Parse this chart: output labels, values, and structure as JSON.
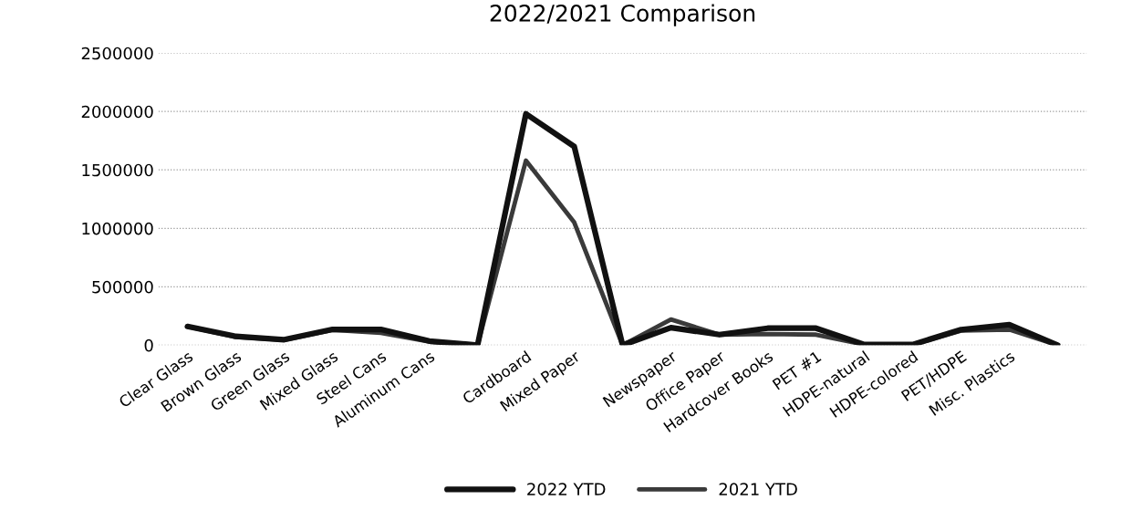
{
  "chart_data": {
    "type": "line",
    "title": "2022/2021 Comparison",
    "categories": [
      "Clear Glass",
      "Brown Glass",
      "Green Glass",
      "Mixed Glass",
      "Steel Cans",
      "Aluminum Cans",
      null,
      "Cardboard",
      "Mixed Paper",
      null,
      "Newspaper",
      "Office Paper",
      "Hardcover Books",
      "PET #1",
      "HDPE-natural",
      "HDPE-colored",
      "PET/HDPE",
      "Misc. Plastics",
      null
    ],
    "series": [
      {
        "name": "2022 YTD",
        "color": "#111111",
        "values": [
          160000,
          75000,
          47000,
          135000,
          135000,
          35000,
          0,
          1980000,
          1700000,
          0,
          150000,
          90000,
          145000,
          145000,
          5000,
          5000,
          133000,
          176000,
          0
        ]
      },
      {
        "name": "2021 YTD",
        "color": "#3a3a3a",
        "values": [
          160000,
          70000,
          45000,
          130000,
          105000,
          30000,
          0,
          1580000,
          1050000,
          0,
          220000,
          90000,
          95000,
          90000,
          5000,
          5000,
          125000,
          133000,
          0
        ]
      }
    ],
    "ylim": [
      0,
      2500000
    ],
    "yticks": [
      0,
      500000,
      1000000,
      1500000,
      2000000,
      2500000
    ],
    "grid": "y",
    "legend": "bottom",
    "marker": "none",
    "line_style": "solid"
  }
}
